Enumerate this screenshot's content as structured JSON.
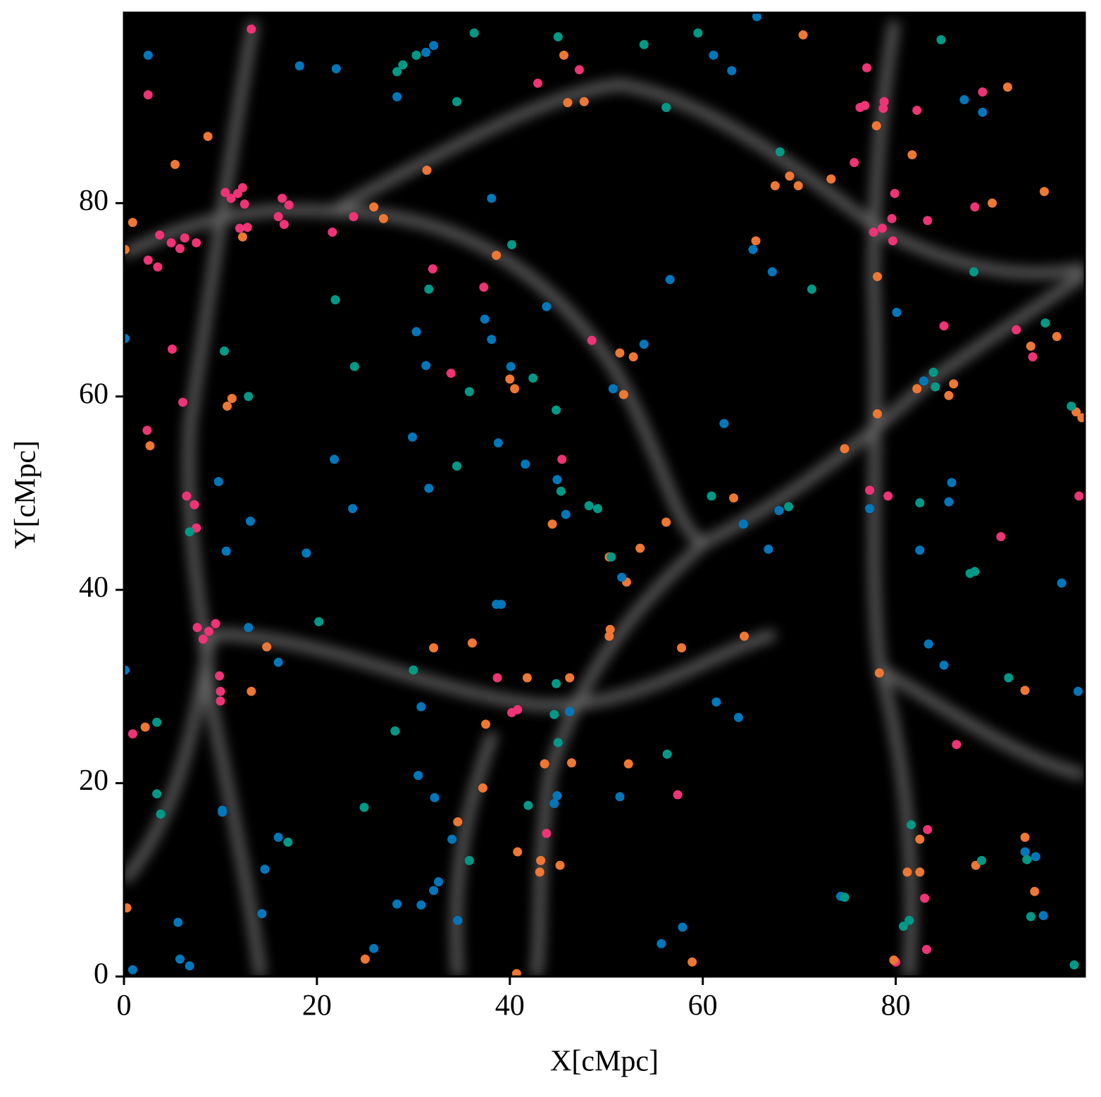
{
  "chart_data": {
    "type": "scatter",
    "x_label": "X[cMpc]",
    "y_label": "Y[cMpc]",
    "xlim": [
      0,
      99.6
    ],
    "ylim": [
      0,
      99.7
    ],
    "xticks": [
      0,
      20,
      40,
      60,
      80
    ],
    "yticks": [
      0,
      20,
      40,
      60,
      80
    ],
    "series": [
      {
        "color": "#EE3377",
        "x": [
          10.5,
          11.1,
          11.8,
          12.3,
          12.5,
          12,
          12.8,
          16.4,
          17.1,
          16.6,
          16,
          13.2,
          2.5,
          3.7,
          4.9,
          5.8,
          6.3,
          7.5,
          2.5,
          3.5,
          5,
          6.1,
          2.4,
          6.5,
          7.3,
          7.5,
          7.6,
          8.8,
          9.5,
          8.2,
          9.9,
          10,
          10,
          0.9,
          21.6,
          23.8,
          32,
          33.9,
          37.3,
          38.7,
          40.2,
          40.8,
          45.4,
          48.5,
          47.2,
          42.9,
          43.8,
          57.4,
          77,
          76.3,
          76.8,
          78.8,
          78.7,
          82.2,
          75.7,
          79.9,
          77.7,
          78.6,
          79.6,
          79.7,
          83.3,
          85,
          89,
          88.2,
          92.5,
          94.2,
          77.3,
          79.2,
          90.9,
          99,
          86.3,
          83.3,
          83,
          83.2,
          80
        ],
        "y": [
          81.1,
          80.5,
          81,
          81.6,
          79.9,
          77.4,
          77.5,
          80.5,
          79.8,
          77.8,
          78.6,
          98,
          91.2,
          76.7,
          75.9,
          75.3,
          76.4,
          75.9,
          74.1,
          73.4,
          64.9,
          59.4,
          56.5,
          49.7,
          48.8,
          46.4,
          36.1,
          35.7,
          36.5,
          34.9,
          31.1,
          29.5,
          28.5,
          25.1,
          77,
          78.6,
          73.2,
          62.4,
          71.3,
          30.9,
          27.3,
          27.6,
          53.5,
          65.8,
          93.8,
          92.4,
          14.8,
          18.8,
          94,
          89.9,
          90.1,
          90.5,
          89.8,
          89.6,
          84.2,
          81,
          77,
          77.4,
          78.4,
          76.1,
          78.2,
          67.3,
          91.5,
          79.6,
          66.9,
          64.1,
          50.3,
          49.7,
          45.5,
          49.7,
          24,
          15.2,
          8.1,
          2.8,
          1.5
        ]
      },
      {
        "color": "#EE7733",
        "x": [
          0.1,
          0.9,
          5.3,
          8.7,
          12.3,
          25.9,
          26.9,
          31.4,
          38.6,
          46,
          47.7,
          45.6,
          70.4,
          69,
          69.9,
          73.3,
          67.5,
          65.5,
          81.7,
          78,
          95.4,
          90,
          91.6,
          78.1,
          94,
          96.7,
          86,
          82.2,
          85.5,
          78.1,
          74.7,
          98.7,
          99.3,
          11.2,
          10.7,
          2.7,
          2.2,
          0.3,
          14.8,
          13.2,
          32.1,
          36.1,
          40,
          40.5,
          44.4,
          51.4,
          52.8,
          51.8,
          56.2,
          63.2,
          53.5,
          50.3,
          50.4,
          50.3,
          52.1,
          57.8,
          64.3,
          41.8,
          46.2,
          37.5,
          37.2,
          34.6,
          43.6,
          46.4,
          52.3,
          40.8,
          43.2,
          43.1,
          45.2,
          25,
          40.7,
          58.9,
          78.3,
          81.2,
          82.5,
          82.5,
          88.3,
          93.4,
          93.4,
          94.4,
          79.8
        ],
        "y": [
          75.2,
          78,
          84,
          86.9,
          76.5,
          79.6,
          78.4,
          83.4,
          74.6,
          90.4,
          90.5,
          95.3,
          97.4,
          82.8,
          81.8,
          82.5,
          81.8,
          76.1,
          85,
          88,
          81.2,
          80,
          92,
          72.4,
          65.2,
          66.2,
          61.3,
          60.8,
          60.1,
          58.2,
          54.6,
          58.4,
          57.8,
          59.8,
          59,
          54.9,
          25.8,
          7.1,
          34.1,
          29.5,
          34,
          34.5,
          61.8,
          60.8,
          46.8,
          64.5,
          64.1,
          60.2,
          47,
          49.5,
          44.3,
          43.4,
          35.9,
          35.2,
          40.8,
          34,
          35.2,
          30.9,
          30.9,
          26.1,
          19.5,
          16,
          22,
          22.1,
          22,
          12.9,
          12,
          10.8,
          11.5,
          1.8,
          0.3,
          1.5,
          31.4,
          10.8,
          14.2,
          10.8,
          11.5,
          14.4,
          29.6,
          8.8,
          1.7
        ]
      },
      {
        "color": "#0077BB",
        "x": [
          2.5,
          18.2,
          22,
          28.3,
          31.3,
          32.1,
          65.6,
          61.1,
          63,
          87.1,
          89,
          38.1,
          0.1,
          65.2,
          67.2,
          56.6,
          43.8,
          37.4,
          38.1,
          30.3,
          31.3,
          40.1,
          53.9,
          80.1,
          82.9,
          50.7,
          62.2,
          29.9,
          38.8,
          21.8,
          41.6,
          44.9,
          31.6,
          9.8,
          85.8,
          85.5,
          77.3,
          45.8,
          67.9,
          23.7,
          13.1,
          64.2,
          10.6,
          18.9,
          66.8,
          82.5,
          51.6,
          97.2,
          38.6,
          39.1,
          12.9,
          0.1,
          16,
          83.4,
          85,
          98.9,
          30.8,
          61.4,
          63.7,
          46.2,
          10.2,
          10.2,
          30.5,
          32.2,
          51.4,
          44.9,
          44.6,
          14.6,
          16,
          34,
          32.6,
          32.1,
          28.3,
          30.8,
          14.3,
          34.6,
          5.6,
          25.9,
          5.8,
          6.8,
          0.9,
          55.7,
          57.9,
          74.3,
          95.3,
          93.4,
          94.5
        ],
        "y": [
          95.3,
          94.2,
          93.9,
          91,
          95.6,
          96.3,
          99.3,
          95.3,
          93.7,
          90.7,
          89.4,
          80.5,
          66,
          75.2,
          72.9,
          72.1,
          69.3,
          68,
          65.9,
          66.7,
          63.2,
          63.1,
          65.4,
          68.7,
          61.6,
          60.8,
          57.2,
          55.8,
          55.2,
          53.5,
          53,
          51.4,
          50.5,
          51.2,
          51.1,
          49.1,
          48.4,
          47.8,
          48.2,
          48.4,
          47.1,
          46.8,
          44,
          43.8,
          44.2,
          44.1,
          41.3,
          40.7,
          38.5,
          38.5,
          36.1,
          31.7,
          32.5,
          34.4,
          32.2,
          29.5,
          27.9,
          28.4,
          26.8,
          27.4,
          17.2,
          17,
          20.8,
          18.5,
          18.6,
          18.7,
          17.9,
          11.1,
          14.4,
          14.2,
          9.8,
          8.9,
          7.5,
          7.4,
          6.5,
          5.8,
          5.6,
          2.9,
          1.8,
          1.1,
          0.7,
          3.4,
          5.1,
          8.3,
          6.3,
          12.9,
          12.4
        ]
      },
      {
        "color": "#009988",
        "x": [
          36.3,
          45,
          53.9,
          59.5,
          84.7,
          30.3,
          28.9,
          28.3,
          34.5,
          56.2,
          68,
          40.2,
          31.6,
          71.3,
          88.1,
          21.9,
          10.4,
          23.9,
          42.4,
          35.8,
          83.9,
          84.1,
          95.5,
          98.2,
          12.9,
          44.8,
          34.5,
          45.3,
          60.9,
          48.2,
          49.1,
          68.9,
          82.5,
          6.8,
          50.5,
          87.7,
          88.2,
          20.2,
          30,
          91.7,
          44.8,
          3.4,
          28.1,
          44.6,
          45,
          56.3,
          3.4,
          3.8,
          24.9,
          41.9,
          17,
          35.8,
          81.6,
          88.9,
          93.6,
          74.7,
          94,
          81.4,
          80.8,
          98.5
        ],
        "y": [
          97.6,
          97.2,
          96.4,
          97.6,
          96.9,
          95.3,
          94.3,
          93.6,
          90.5,
          89.9,
          85.3,
          75.7,
          71.1,
          71.1,
          72.9,
          70,
          64.7,
          63.1,
          61.9,
          60.5,
          62.5,
          61,
          67.6,
          59,
          60,
          58.6,
          52.8,
          50.2,
          49.7,
          48.7,
          48.4,
          48.6,
          49,
          46,
          43.4,
          41.7,
          41.9,
          36.7,
          31.7,
          30.9,
          30.3,
          26.3,
          25.4,
          27.1,
          24.2,
          23,
          18.9,
          16.8,
          17.5,
          17.7,
          13.9,
          12,
          15.7,
          12,
          12.1,
          8.2,
          6.2,
          5.8,
          5.2,
          1.2
        ]
      }
    ]
  }
}
